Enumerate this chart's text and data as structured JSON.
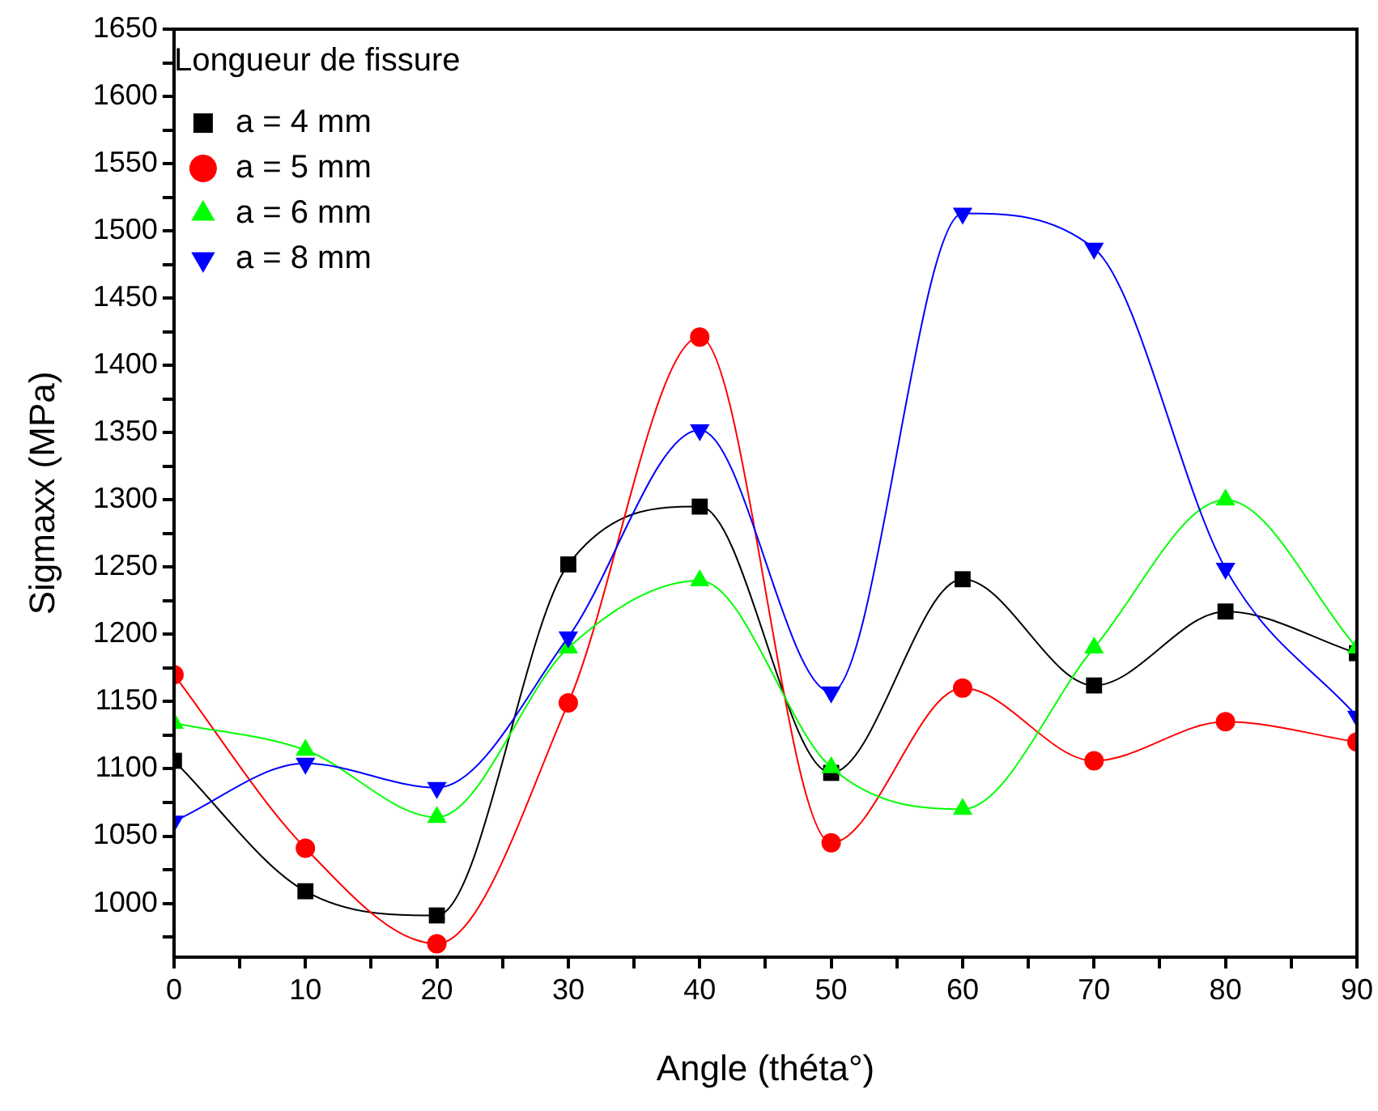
{
  "chart_data": {
    "type": "line",
    "xlabel": "Angle (théta°)",
    "ylabel": "Sigmaxx (MPa)",
    "legend_title": "Longueur de fissure",
    "legend": "top left",
    "grid": false,
    "x": [
      0,
      10,
      20,
      30,
      40,
      50,
      60,
      70,
      80,
      90
    ],
    "xlim": [
      0,
      90
    ],
    "xticks": [
      0,
      {
        "value": 5,
        "label": null
      },
      10,
      {
        "value": 15,
        "label": null
      },
      20,
      {
        "value": 25,
        "label": null
      },
      30,
      {
        "value": 35,
        "label": null
      },
      40,
      {
        "value": 45,
        "label": null
      },
      50,
      {
        "value": 55,
        "label": null
      },
      60,
      {
        "value": 65,
        "label": null
      },
      70,
      {
        "value": 75,
        "label": null
      },
      80,
      {
        "value": 85,
        "label": null
      },
      90
    ],
    "ylim": [
      960,
      1650
    ],
    "yticks": [
      {
        "value": 975,
        "label": null
      },
      1000,
      {
        "value": 1025,
        "label": null
      },
      1050,
      {
        "value": 1075,
        "label": null
      },
      1100,
      {
        "value": 1125,
        "label": null
      },
      1150,
      {
        "value": 1175,
        "label": null
      },
      1200,
      {
        "value": 1225,
        "label": null
      },
      1250,
      {
        "value": 1275,
        "label": null
      },
      1300,
      {
        "value": 1325,
        "label": null
      },
      1350,
      {
        "value": 1375,
        "label": null
      },
      1400,
      {
        "value": 1425,
        "label": null
      },
      1450,
      {
        "value": 1475,
        "label": null
      },
      1500,
      {
        "value": 1525,
        "label": null
      },
      1550,
      {
        "value": 1575,
        "label": null
      },
      1600,
      {
        "value": 1625,
        "label": null
      },
      1650
    ],
    "series": [
      {
        "name": "a = 4 mm",
        "color": "#000000",
        "marker": "square",
        "values": [
          1106,
          1009,
          991,
          1252,
          1295,
          1097,
          1241,
          1162,
          1217,
          1186
        ]
      },
      {
        "name": "a = 5 mm",
        "color": "#ff0000",
        "marker": "circle",
        "values": [
          1170,
          1041,
          970,
          1149,
          1421,
          1045,
          1160,
          1106,
          1135,
          1120
        ]
      },
      {
        "name": "a = 6 mm",
        "color": "#00ff00",
        "marker": "triangle",
        "values": [
          1134,
          1114,
          1064,
          1190,
          1240,
          1101,
          1070,
          1190,
          1300,
          1190
        ]
      },
      {
        "name": "a = 8 mm",
        "color": "#0000ff",
        "marker": "triangle-down",
        "values": [
          1061,
          1104,
          1086,
          1198,
          1352,
          1157,
          1513,
          1487,
          1249,
          1139
        ]
      }
    ]
  }
}
